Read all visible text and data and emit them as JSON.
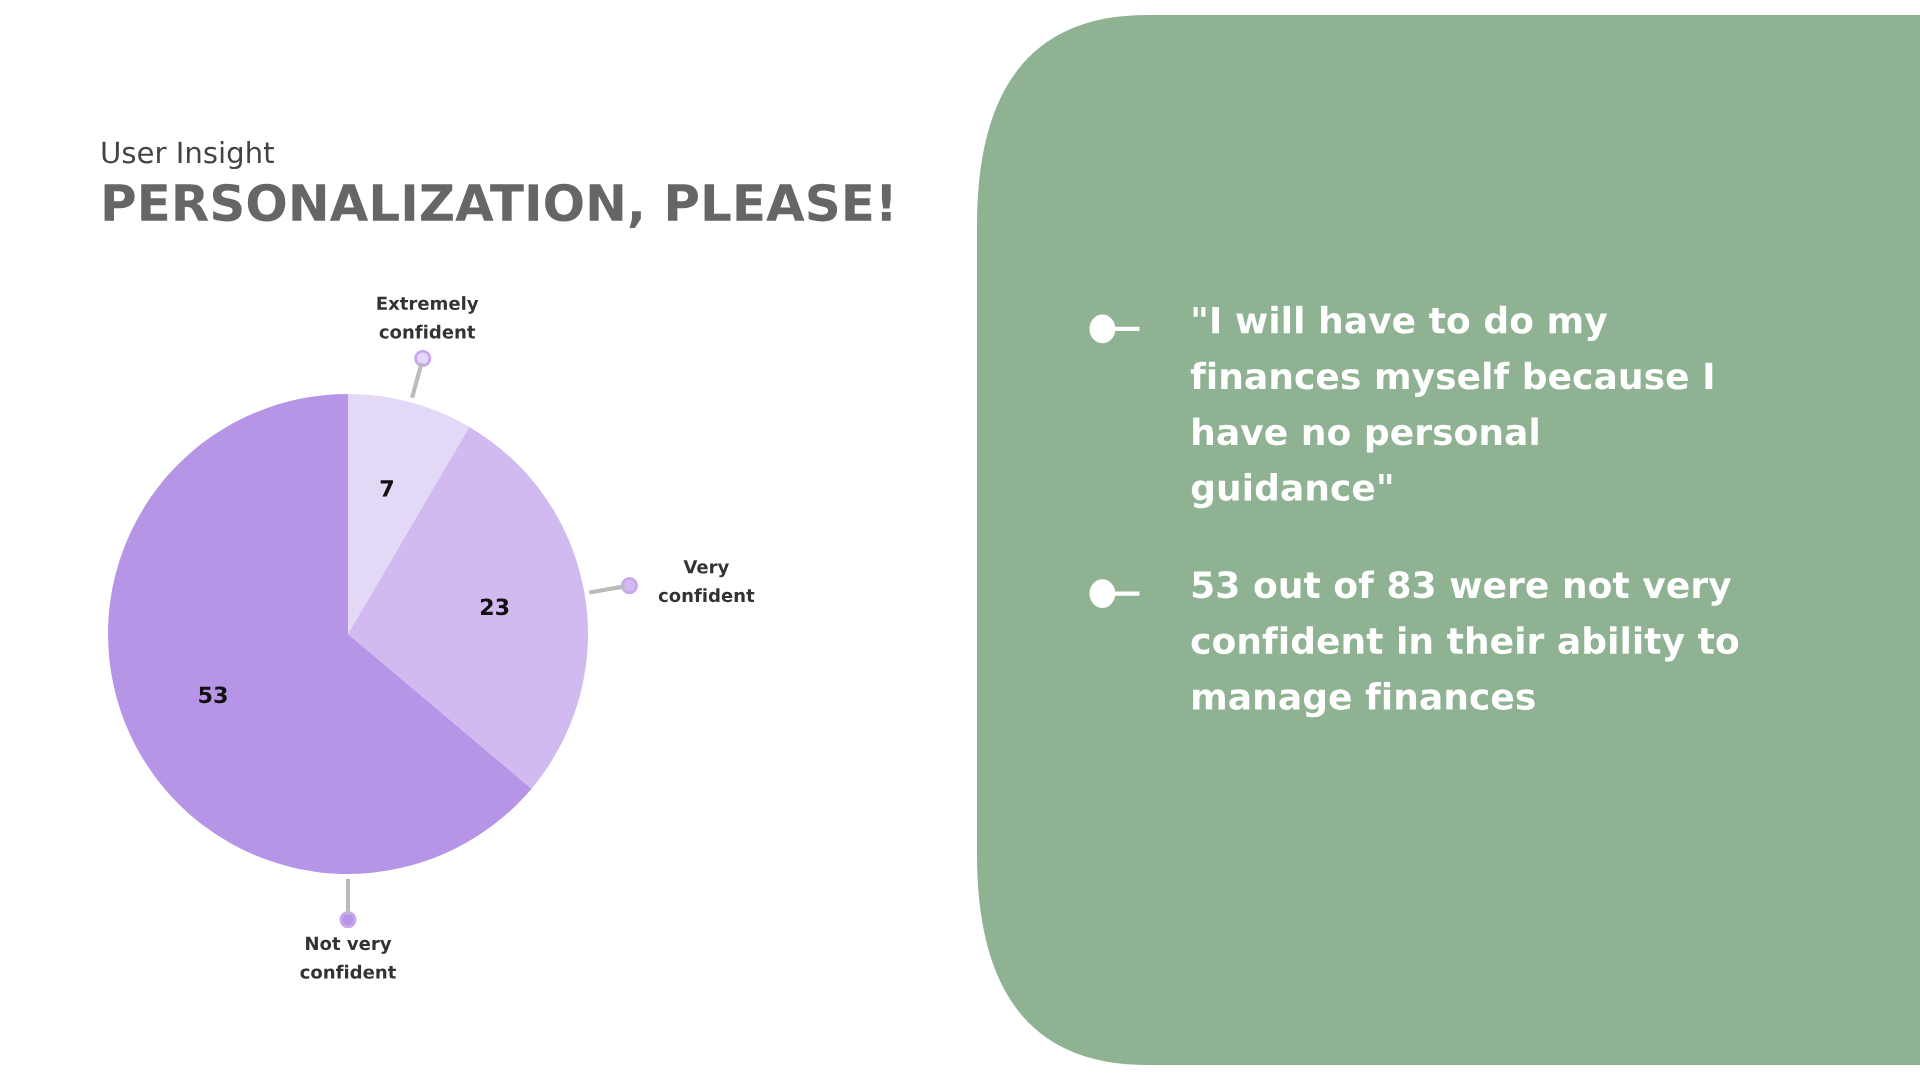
{
  "chart_data": [
    {
      "type": "pie",
      "subtitle": "User Insight",
      "title": "PERSONALIZATION, PLEASE!",
      "categories": [
        "Extremely\nconfident",
        "Very\nconfident",
        "Not very\nconfident"
      ],
      "values": [
        7,
        23,
        53
      ],
      "colors": [
        "#e3d8f5",
        "#d1baf0",
        "#b795e6"
      ],
      "data_labels": true
    },
    {
      "type": "other",
      "color": "#8fb293",
      "annotations": [
        "\"I will have to do my finances myself because I have no personal guidance\"",
        "53 out of 83 were not very confident in their ability to manage finances"
      ]
    }
  ]
}
